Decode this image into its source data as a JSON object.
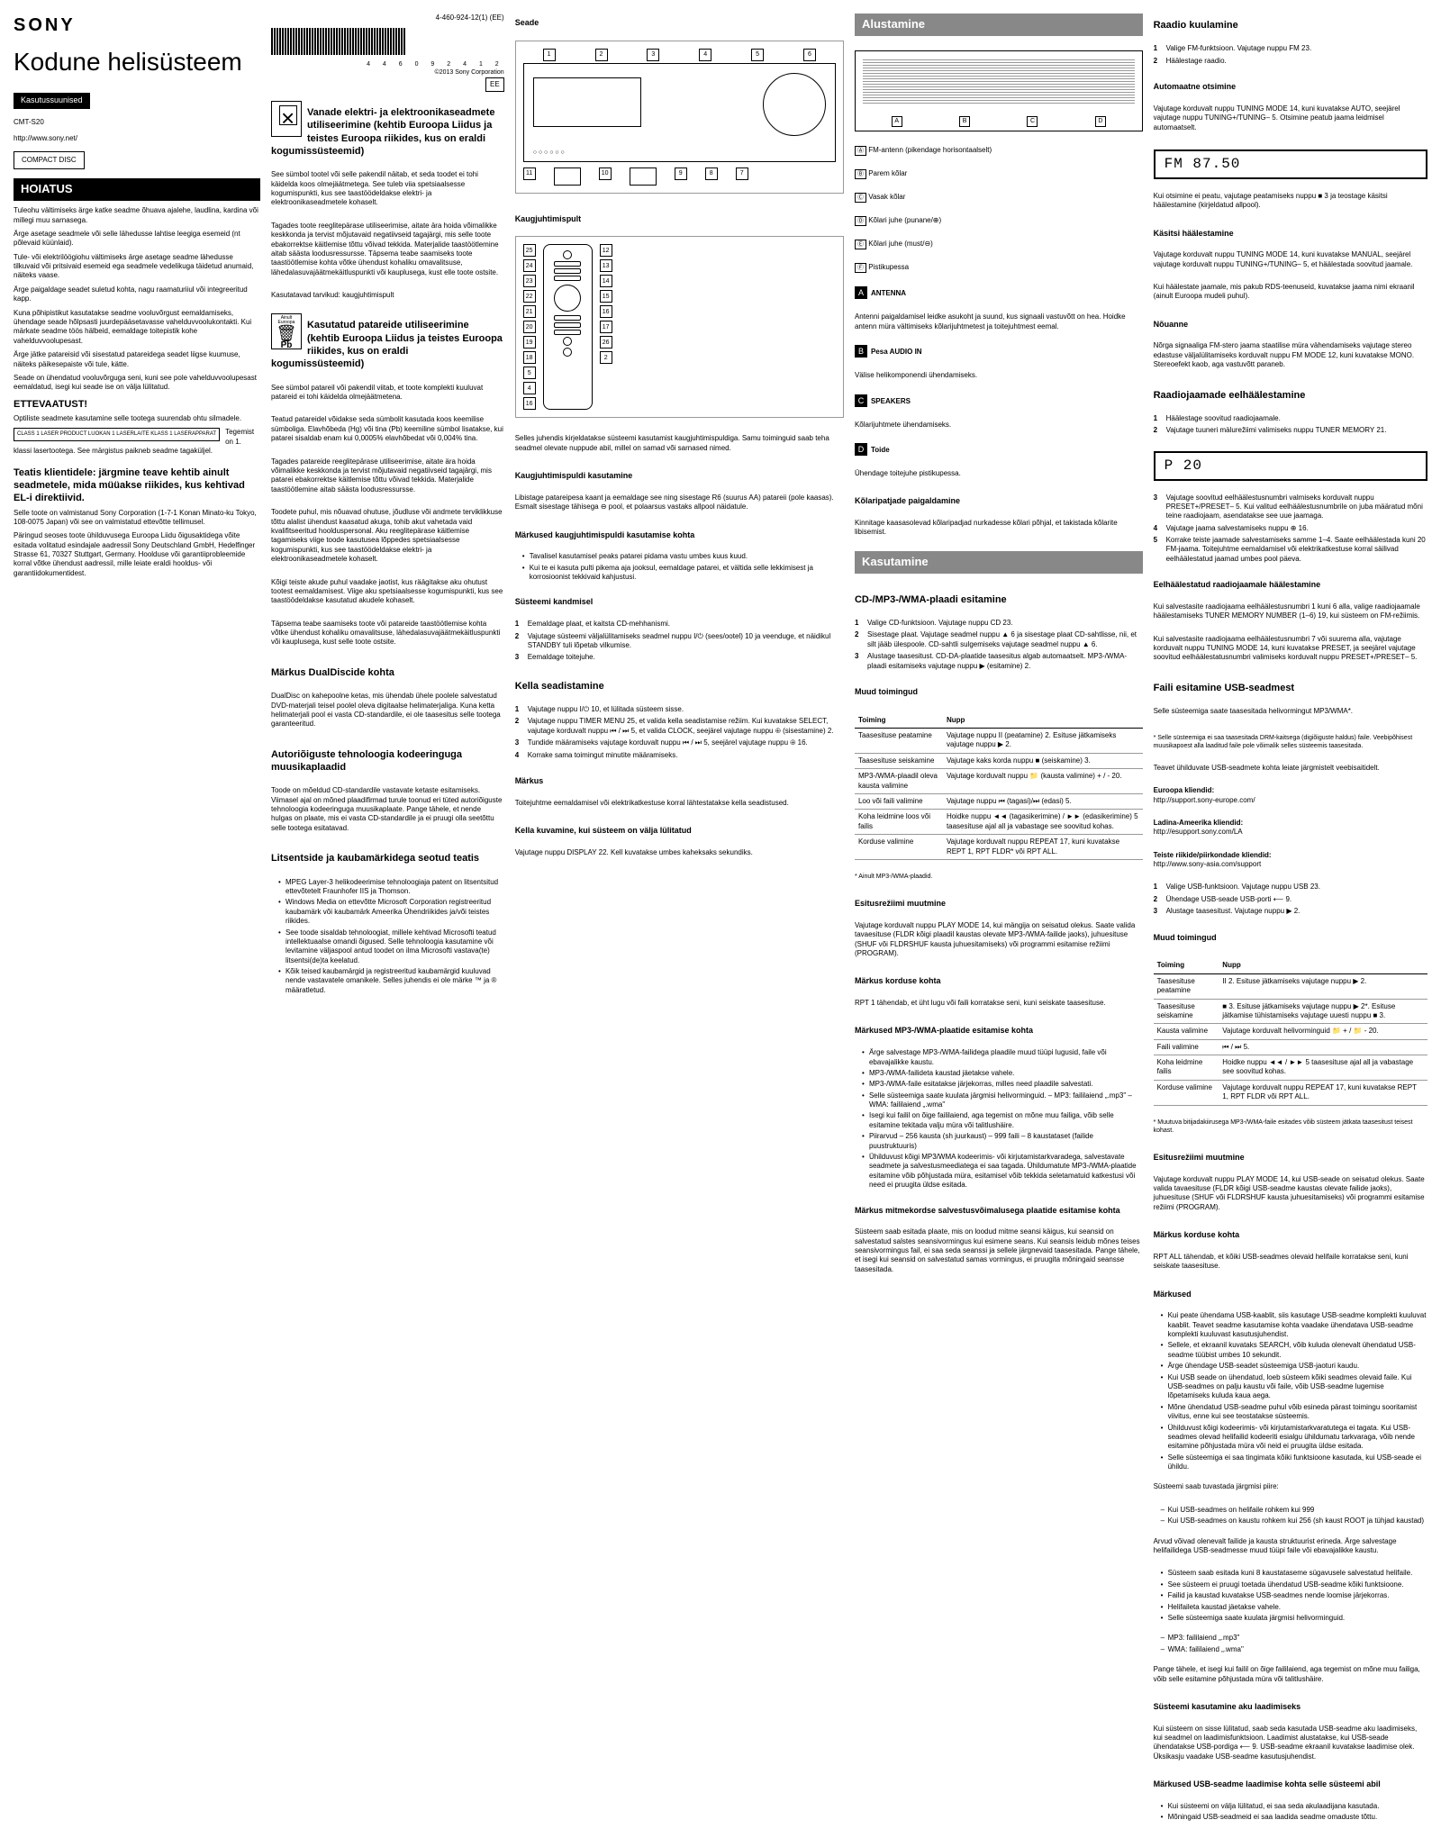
{
  "meta": {
    "brand": "SONY",
    "doc_number": "4-460-924-12(1) (EE)",
    "main_title": "Kodune helisüsteem",
    "badge": "Kasutussuunised",
    "barcode_num": "4 4 6 0 9 2 4 1 2",
    "copyright": "©2013 Sony Corporation",
    "model": "CMT-S20",
    "region_code": "EE",
    "url": "http://www.sony.net/",
    "cd_logo": "COMPACT DISC"
  },
  "warning": {
    "title": "HOIATUS",
    "p1": "Tuleohu vältimiseks ärge katke seadme õhuava ajalehe, laudlina, kardina või millegi muu sarnasega.",
    "p2": "Ärge asetage seadmele või selle lähedusse lahtise leegiga esemeid (nt põlevaid küünlaid).",
    "p3": "Tule- või elektrilöögiohu vältimiseks ärge asetage seadme lähedusse tilkuvaid või pritsivaid esemeid ega seadmele vedelikuga täidetud anumaid, näiteks vaase.",
    "p4": "Ärge paigaldage seadet suletud kohta, nagu raamaturiiul või integreeritud kapp.",
    "p5": "Kuna põhipistikut kasutatakse seadme vooluvõrgust eemaldamiseks, ühendage seade hõlpsasti juurdepääsetavasse vahelduvvoolukontakti. Kui märkate seadme töös hälbeid, eemaldage toitepistik kohe vahelduvvoolupesast.",
    "p6": "Ärge jätke patareisid või sisestatud patareidega seadet liigse kuumuse, näiteks päikesepaiste või tule, kätte.",
    "p7": "Seade on ühendatud vooluvõrguga seni, kuni see pole vahelduvvoolupesast eemaldatud, isegi kui seade ise on välja lülitatud.",
    "important_title": "ETTEVAATUST!",
    "important_p": "Optiliste seadmete kasutamine selle tootega suurendab ohtu silmadele.",
    "laser_box": "CLASS 1 LASER PRODUCT\nLUOKAN 1 LASERLAITE\nKLASS 1 LASERAPPARAT",
    "laser_p": "Tegemist on 1. klassi lasertootega. See märgistus paikneb seadme tagaküljel.",
    "notice_title": "Teatis klientidele: järgmine teave kehtib ainult seadmetele, mida müüakse riikides, kus kehtivad EL-i direktiivid.",
    "notice_p1": "Selle toote on valmistanud Sony Corporation (1-7-1 Konan Minato-ku Tokyo, 108-0075 Japan) või see on valmistatud ettevõtte tellimusel.",
    "notice_p2": "Päringud seoses toote ühilduvusega Euroopa Liidu õigusaktidega võite esitada volitatud esindajale aadressil Sony Deutschland GmbH, Hedelfinger Strasse 61, 70327 Stuttgart, Germany. Hoolduse või garantiiprobleemide korral võtke ühendust aadressil, mille leiate eraldi hooldus- või garantiidokumentidest."
  },
  "weee": {
    "title": "Vanade elektri- ja elektroonikaseadmete utiliseerimine (kehtib Euroopa Liidus ja teistes Euroopa riikides, kus on eraldi kogumissüsteemid)",
    "p1": "See sümbol tootel või selle pakendil näitab, et seda toodet ei tohi käidelda koos olmejäätmetega. See tuleb viia spetsiaalsesse kogumispunkti, kus see taastöödeldakse elektri- ja elektroonikaseadmetele kohaselt.",
    "p2": "Tagades toote reeglitepärase utiliseerimise, aitate ära hoida võimalikke keskkonda ja tervist mõjutavaid negatiivseid tagajärgi, mis selle toote ebakorrektse käitlemise tõttu võivad tekkida. Materjalide taastöötlemine aitab säästa loodusressursse. Täpsema teabe saamiseks toote taastöötlemise kohta võtke ühendust kohaliku omavalitsuse, lähedalasuvajäätmekäitluspunkti või kauplusega, kust elle toote ostsite.",
    "p3": "Kasutatavad tarvikud: kaugjuhtimispult"
  },
  "battery": {
    "region": "Ainult Euroopa",
    "symbol": "Pb",
    "title": "Kasutatud patareide utiliseerimine (kehtib Euroopa Liidus ja teistes Euroopa riikides, kus on eraldi kogumissüsteemid)",
    "p1": "See sümbol patareil või pakendil viitab, et toote komplekti kuuluvat patareid ei tohi käidelda olmejäätmetena.",
    "p2": "Teatud patareidel võidakse seda sümbolit kasutada koos keemilise sümboliga. Elavhõbeda (Hg) või tina (Pb) keemiline sümbol lisatakse, kui patarei sisaldab enam kui 0,0005% elavhõbedat või 0,004% tina.",
    "p3": "Tagades patareide reeglitepärase utiliseerimise, aitate ära hoida võimalikke keskkonda ja tervist mõjutavaid negatiivseid tagajärgi, mis patarei ebakorrektse käitlemise tõttu võivad tekkida. Materjalide taastöötlemine aitab säästa loodusressursse.",
    "p4": "Toodete puhul, mis nõuavad ohutuse, jõudluse või andmete terviklikkuse tõttu alalist ühendust kaasatud akuga, tohib akut vahetada vaid kvalifitseeritud hoolduspersonal. Aku reeglitepärase käitlemise tagamiseks viige toode kasutusea lõppedes spetsiaalsesse kogumispunkti, kus see taastöödeldakse elektri- ja elektroonikaseadmetele kohaselt.",
    "p5": "Kõigi teiste akude puhul vaadake jaotist, kus räägitakse aku ohutust tootest eemaldamisest. Viige aku spetsiaalsesse kogumispunkti, kus see taastöödeldakse kasutatud akudele kohaselt.",
    "p6": "Täpsema teabe saamiseks toote või patareide taastöötlemise kohta võtke ühendust kohaliku omavalitsuse, lähedalasuvajäätmekäitluspunkti või kauplusega, kust selle toote ostsite."
  },
  "dualdisc": {
    "title": "Märkus DualDiscide kohta",
    "p": "DualDisc on kahepoolne ketas, mis ühendab ühele poolele salvestatud DVD-materjali teisel poolel oleva digitaalse helimaterjaliga. Kuna ketta helimaterjali pool ei vasta CD-standardile, ei ole taasesitus selle tootega garanteeritud."
  },
  "copyright_tech": {
    "title": "Autoriõiguste tehnoloogia kodeeringuga muusikaplaadid",
    "p": "Toode on mõeldud CD-standardile vastavate ketaste esitamiseks. Viimasel ajal on mõned plaadifirmad turule toonud eri tüted autoriõiguste tehnoloogia kodeeringuga muusikaplaate. Pange tähele, et nende hulgas on plaate, mis ei vasta CD-standardile ja ei pruugi olla seetõttu selle tootega esitatavad."
  },
  "license": {
    "title": "Litsentside ja kaubamärkidega seotud teatis",
    "b1": "MPEG Layer-3 helikodeerimise tehnoloogiaja patent on litsentsitud ettevõtetelt Fraunhofer IIS ja Thomson.",
    "b2": "Windows Media on ettevõtte Microsoft Corporation registreeritud kaubamärk või kaubamärk Ameerika Ühendriikides ja/või teistes riikides.",
    "b3": "See toode sisaldab tehnoloogiat, millele kehtivad Microsofti teatud intellektuaalse omandi õigused. Selle tehnoloogia kasutamine või levitamine väljaspool antud toodet on ilma Microsofti vastava(te) litsentsi(de)ta keelatud.",
    "b4": "Kõik teised kaubamärgid ja registreeritud kaubamärgid kuuluvad nende vastavatele omanikele. Selles juhendis ei ole märke ™ ja ® määratletud."
  },
  "diagram": {
    "title": "Seade",
    "front_callouts": [
      "1",
      "2",
      "3",
      "4",
      "5",
      "6"
    ],
    "side_callouts": [
      "7",
      "8",
      "9",
      "10",
      "11"
    ],
    "remote_title": "Kaugjuhtimispult",
    "remote_left": [
      "25",
      "24",
      "23",
      "22",
      "21",
      "20",
      "19",
      "18"
    ],
    "remote_right": [
      "12",
      "13",
      "14",
      "15",
      "16",
      "17"
    ],
    "remote_bottom_left": [
      "5",
      "4",
      "16"
    ],
    "remote_bottom_right": [
      "26",
      "2"
    ],
    "remote_note": "Selles juhendis kirjeldatakse süsteemi kasutamist kaugjuhtimispuldiga. Samu toiminguid saab teha seadmel olevate nuppude abil, millel on samad või sarnased nimed.",
    "remote_batt_title": "Kaugjuhtimispuldi kasutamine",
    "remote_batt_p": "Libistage patareipesa kaant ja eemaldage see ning sisestage R6 (suurus AA) patareii (pole kaasas). Esmalt sisestage tähisega ⊖ pool, et polaarsus vastaks allpool näidatule.",
    "remote_notes_title": "Märkused kaugjuhtimispuldi kasutamise kohta",
    "remote_note1": "Tavalisel kasutamisel peaks patarei pidama vastu umbes kuus kuud.",
    "remote_note2": "Kui te ei kasuta pulti pikema aja jooksul, eemaldage patarei, et vältida selle lekkimisest ja korrosioonist tekkivaid kahjustusi."
  },
  "rear": {
    "labels": [
      "A",
      "B",
      "C",
      "D"
    ],
    "legend_a": "FM-antenn (pikendage horisontaalselt)",
    "legend_b": "Parem kõlar",
    "legend_c": "Vasak kõlar",
    "legend_d": "Kõlari juhe (punane/⊕)",
    "legend_e": "Kõlari juhe (must/⊖)",
    "legend_f": "Pistikupessa"
  },
  "startup": {
    "title": "Alustamine",
    "antenna_lbl": "A",
    "antenna_title": "ANTENNA",
    "antenna_p": "Antenni paigaldamisel leidke asukoht ja suund, kus signaali vastuvõtt on hea. Hoidke antenn müra vältimiseks kõlarijuhtmetest ja toitejuhtmest eemal.",
    "audio_lbl": "B",
    "audio_title": "Pesa AUDIO IN",
    "audio_p": "Välise helikomponendi ühendamiseks.",
    "speakers_lbl": "C",
    "speakers_title": "SPEAKERS",
    "speakers_p": "Kõlarijuhtmete ühendamiseks.",
    "power_lbl": "D",
    "power_title": "Toide",
    "power_p": "Ühendage toitejuhe pistikupessa.",
    "speaker_pads_title": "Kõlaripatjade paigaldamine",
    "speaker_pads_p": "Kinnitage kaasasolevad kõlaripadjad nurkadesse kõlari põhjal, et takistada kõlarite libisemist."
  },
  "clock": {
    "title": "Kella seadistamine",
    "s1": "Vajutage nuppu I/⏻ 10, et lülitada süsteem sisse.",
    "s2": "Vajutage nuppu TIMER MENU 25, et valida kella seadistamise režiim. Kui kuvatakse SELECT, vajutage korduvalt nuppu ⏮ / ⏭ 5, et valida CLOCK, seejärel vajutage nuppu ⊕ (sisestamine) 2.",
    "s3": "Tundide määramiseks vajutage korduvalt nuppu ⏮ / ⏭ 5, seejärel vajutage nuppu ⊕ 16.",
    "s4": "Korrake sama toimingut minutite määramiseks.",
    "note_title": "Märkus",
    "note_p": "Toitejuhtme eemaldamisel või elektrikatkestuse korral lähtestatakse kella seadistused.",
    "off_title": "Kella kuvamine, kui süsteem on välja lülitatud",
    "off_p": "Vajutage nuppu DISPLAY 22. Kell kuvatakse umbes kaheksaks sekundiks."
  },
  "system": {
    "title": "Süsteemi kandmisel",
    "s1": "Eemaldage plaat, et kaitsta CD-mehhanismi.",
    "s2": "Vajutage süsteemi väljalülitamiseks seadmel nuppu I/⏻ (sees/ootel) 10 ja veenduge, et näidikul STANDBY tuli lõpetab vilkumise.",
    "s3": "Eemaldage toitejuhe."
  },
  "usage": {
    "title": "Kasutamine"
  },
  "cd": {
    "title": "CD-/MP3-/WMA-plaadi esitamine",
    "s1": "Valige CD-funktsioon. Vajutage nuppu CD 23.",
    "s2": "Sisestage plaat. Vajutage seadmel nuppu ▲ 6 ja sisestage plaat CD-sahtlisse, nii, et silt jääb ülespoole. CD-sahtli sulgemiseks vajutage seadmel nuppu ▲ 6.",
    "s3": "Alustage taasesitust. CD-DA-plaatide taasesitus algab automaatselt. MP3-/WMA-plaadi esitamiseks vajutage nuppu ▶ (esitamine) 2.",
    "ops_title": "Muud toimingud",
    "col_to": "Toiming",
    "col_do": "Nupp",
    "r1_to": "Taasesituse peatamine",
    "r1_do": "Vajutage nuppu II (peatamine) 2. Esituse jätkamiseks vajutage nuppu ▶ 2.",
    "r2_to": "Taasesituse seiskamine",
    "r2_do": "Vajutage kaks korda nuppu ■ (seiskamine) 3.",
    "r3_to": "MP3-/WMA-plaadil oleva kausta valimine",
    "r3_do": "Vajutage korduvalt nuppu 📁 (kausta valimine) + / - 20.",
    "r4_to": "Loo või faili valimine",
    "r4_do": "Vajutage nuppu ⏮ (tagasi)/⏭ (edasi) 5.",
    "r5_to": "Koha leidmine loos või failis",
    "r5_do": "Hoidke nuppu ◄◄ (tagasikerimine) / ►► (edasikerimine) 5 taasesituse ajal all ja vabastage see soovitud kohas.",
    "r6_to": "Korduse valimine",
    "r6_do": "Vajutage korduvalt nuppu REPEAT 17, kuni kuvatakse REPT 1, RPT FLDR* või RPT ALL.",
    "footnote": "* Ainult MP3-/WMA-plaadid.",
    "mode_title": "Esitusrežiimi muutmine",
    "mode_p": "Vajutage korduvalt nuppu PLAY MODE 14, kui mängija on seisatud olekus. Saate valida tavaesituse (FLDR kõigi plaadil kaustas olevate MP3-/WMA-failide jaoks), juhuesituse (SHUF või FLDRSHUF kausta juhuesitamiseks) või programmi esitamise režiimi (PROGRAM).",
    "rpt_title": "Märkus korduse kohta",
    "rpt_p": "RPT 1 tähendab, et üht lugu või faili korratakse seni, kuni seiskate taasesituse."
  },
  "mp3_notes": {
    "title": "Märkused MP3-/WMA-plaatide esitamise kohta",
    "b1": "Ärge salvestage MP3-/WMA-failidega plaadile muud tüüpi lugusid, faile või ebavajalikke kaustu.",
    "b2": "MP3-/WMA-failideta kaustad jäetakse vahele.",
    "b3": "MP3-/WMA-faile esitatakse järjekorras, milles need plaadile salvestati.",
    "b4": "Selle süsteemiga saate kuulata järgmisi helivorminguid. – MP3: faililaiend „.mp3\" – WMA: faililaiend „.wma\"",
    "b5": "Isegi kui failil on õige faililaiend, aga tegemist on mõne muu failiga, võib selle esitamine tekitada valju müra või talitlushäire.",
    "b6": "Piirarvud – 256 kausta (sh juurkaust) – 999 faili – 8 kaustataset (failide puustruktuuris)",
    "b7": "Ühilduvust kõigi MP3/WMA kodeerimis- või kirjutamistarkvaradega, salvestavate seadmete ja salvestusmeediatega ei saa tagada. Ühildumatute MP3-/WMA-plaatide esitamine võib põhjustada müra, esitamisel võib tekkida seletamatuid katkestusi või need ei pruugita üldse esitada.",
    "multi_title": "Märkus mitmekordse salvestusvõimalusega plaatide esitamise kohta",
    "multi_p": "Süsteem saab esitada plaate, mis on loodud mitme seansi käigus, kui seansid on salvestatud salstes seansivormingus kui esimene seans. Kui seansis leidub mõnes teises seansivormingus fail, ei saa seda seanssi ja sellele järgnevaid taasesitada. Pange tähele, et isegi kui seansid on salvestatud samas vormingus, ei pruugita mõningaid seansse taasesitada."
  },
  "radio": {
    "title": "Raadio kuulamine",
    "s1": "Valige FM-funktsioon. Vajutage nuppu FM 23.",
    "s2": "Häälestage raadio.",
    "auto_title": "Automaatne otsimine",
    "auto_p": "Vajutage korduvalt nuppu TUNING MODE 14, kuni kuvatakse AUTO, seejärel vajutage nuppu TUNING+/TUNING– 5. Otsimine peatub jaama leidmisel automaatselt.",
    "display_text": "FM 87.50",
    "auto_p2": "Kui otsimine ei peatu, vajutage peatamiseks nuppu ■ 3 ja teostage käsitsi häälestamine (kirjeldatud allpool).",
    "manual_title": "Käsitsi häälestamine",
    "manual_p": "Vajutage korduvalt nuppu TUNING MODE 14, kuni kuvatakse MANUAL, seejärel vajutage korduvalt nuppu TUNING+/TUNING– 5, et häälestada soovitud jaamale.",
    "manual_p2": "Kui häälestate jaamale, mis pakub RDS-teenuseid, kuvatakse jaama nimi ekraanil (ainult Euroopa mudeli puhul).",
    "tip_title": "Nõuanne",
    "tip_p": "Nõrga signaaliga FM-stero jaama staatilise müra vähendamiseks vajutage stereo edastuse väljalülitamiseks korduvalt nuppu FM MODE 12, kuni kuvatakse MONO. Stereoefekt kaob, aga vastuvõtt paraneb."
  },
  "preset": {
    "title": "Raadiojaamade eelhäälestamine",
    "s1": "Häälestage soovitud raadiojaamale.",
    "s2": "Vajutage tuuneri mälurežiimi valimiseks nuppu TUNER MEMORY 21.",
    "display_text": "P   20",
    "s3": "Vajutage soovitud eelhäälestusnumbri valmiseks korduvalt nuppu PRESET+/PRESET– 5. Kui valitud eelhäälestusnumbrile on juba määratud mõni teine raadiojaam, asendatakse see uue jaamaga.",
    "s4": "Vajutage jaama salvestamiseks nuppu ⊕ 16.",
    "s5": "Korrake teiste jaamade salvestamiseks samme 1–4. Saate eelhäälestada kuni 20 FM-jaama. Toitejuhtme eemaldamisel või elektrikatkestuse korral säilivad eelhäälestatud jaamad umbes pool päeva.",
    "listen_title": "Eelhäälestatud raadiojaamale häälestamine",
    "listen_p": "Kui salvestasite raadiojaama eelhäälestusnumbri 1 kuni 6 alla, valige raadiojaamale häälestamiseks TUNER MEMORY NUMBER (1–6) 19, kui süsteem on FM-režiimis.",
    "listen_p2": "Kui salvestasite raadiojaama eelhäälestusnumbri 7 või suurema alla, vajutage korduvalt nuppu TUNING MODE 14, kuni kuvatakse PRESET, ja seejärel vajutage soovitud eelhäälestatusnumbri valimiseks korduvalt nuppu PRESET+/PRESET– 5."
  },
  "usb": {
    "title": "Faili esitamine USB-seadmest",
    "p1": "Selle süsteemiga saate taasesitada helivormingut MP3/WMA*.",
    "note": "* Selle süsteemiga ei saa taasesitada DRM-kaitsega (digiõiguste haldus) faile. Veebipõhisest muusikapoest alla laaditud faile pole võimalik selles süsteemis taasesitada.",
    "p2": "Teavet ühilduvate USB-seadmete kohta leiate järgmistelt veebisaitidelt.",
    "eu_label": "Euroopa kliendid:",
    "eu_url": "http://support.sony-europe.com/",
    "latam_label": "Ladina-Ameerika kliendid:",
    "latam_url": "http://esupport.sony.com/LA",
    "other_label": "Teiste riikide/piirkondade kliendid:",
    "other_url": "http://www.sony-asia.com/support",
    "s1": "Valige USB-funktsioon. Vajutage nuppu USB 23.",
    "s2": "Ühendage USB-seade USB-porti ⟵ 9.",
    "s3": "Alustage taasesitust. Vajutage nuppu ▶ 2.",
    "ops_title": "Muud toimingud",
    "col_to": "Toiming",
    "col_do": "Nupp",
    "r1_to": "Taasesituse peatamine",
    "r1_do": "II 2. Esituse jätkamiseks vajutage nuppu ▶ 2.",
    "r2_to": "Taasesituse seiskamine",
    "r2_do": "■ 3. Esituse jätkamiseks vajutage nuppu ▶ 2*. Esituse jätkamise tühistamiseks vajutage uuesti nuppu ■ 3.",
    "r3_to": "Kausta valimine",
    "r3_do": "Vajutage korduvalt helivorminguid 📁 + / 📁 - 20.",
    "r4_to": "Faili valimine",
    "r4_do": "⏮ / ⏭ 5.",
    "r5_to": "Koha leidmine failis",
    "r5_do": "Hoidke nuppu ◄◄ / ►► 5 taasesituse ajal all ja vabastage see soovitud kohas.",
    "r6_to": "Korduse valimine",
    "r6_do": "Vajutage korduvalt nuppu REPEAT 17, kuni kuvatakse REPT 1, RPT FLDR või RPT ALL.",
    "footnote": "* Muutuva bitijadakiirusega MP3-/WMA-faile esitades võib süsteem jätkata taasesitust teisest kohast.",
    "mode_title": "Esitusrežiimi muutmine",
    "mode_p": "Vajutage korduvalt nuppu PLAY MODE 14, kui USB-seade on seisatud olekus. Saate valida tavaesituse (FLDR kõigi USB-seadme kaustas olevate failide jaoks), juhuesituse (SHUF või FLDRSHUF kausta juhuesitamiseks) või programmi esitamise režiimi (PROGRAM).",
    "rpt_title": "Märkus korduse kohta",
    "rpt_p": "RPT ALL tähendab, et kõiki USB-seadmes olevaid helifaile korratakse seni, kuni seiskate taasesituse."
  },
  "usb_notes": {
    "title": "Märkused",
    "b1": "Kui peate ühendama USB-kaablit, siis kasutage USB-seadme komplekti kuuluvat kaablit. Teavet seadme kasutamise kohta vaadake ühendatava USB-seadme komplekti kuuluvast kasutusjuhendist.",
    "b2": "Sellele, et ekraanil kuvataks SEARCH, võib kuluda olenevalt ühendatud USB-seadme tüübist umbes 10 sekundit.",
    "b3": "Ärge ühendage USB-seadet süsteemiga USB-jaoturi kaudu.",
    "b4": "Kui USB seade on ühendatud, loeb süsteem kõiki seadmes olevaid faile. Kui USB-seadmes on palju kaustu või faile, võib USB-seadme lugemise lõpetamiseks kuluda kaua aega.",
    "b5": "Mõne ühendatud USB-seadme puhul võib esineda pärast toimingu sooritamist viivitus, enne kui see teostatakse süsteemis.",
    "b6": "Ühilduvust kõigi kodeerimis- või kirjutamistarkvaratutega ei tagata. Kui USB-seadmes olevad helifailid kodeeriti esialgu ühildumatu tarkvaraga, võib nende esitamine põhjustada müra või neid ei pruugita üldse esitada.",
    "b7": "Selle süsteemiga ei saa tingimata kõiki funktsioone kasutada, kui USB-seade ei ühildu.",
    "limits_intro": "Süsteemi saab tuvastada järgmisi piire:",
    "l1": "Kui USB-seadmes on helifaile rohkem kui 999",
    "l2": "Kui USB-seadmes on kaustu rohkem kui 256 (sh kaust ROOT ja tühjad kaustad)",
    "limits_p": "Arvud võivad olenevalt failide ja kausta struktuurist erineda. Ärge salvestage helifailidega USB-seadmesse muud tüüpi faile või ebavajalikke kaustu.",
    "b8": "Süsteem saab esitada kuni 8 kaustataseme sügavusele salvestatud helifaile.",
    "b9": "See süsteem ei pruugi toetada ühendatud USB-seadme kõiki funktsioone.",
    "b10": "Failid ja kaustad kuvatakse USB-seadmes nende loomise järjekorras.",
    "b11": "Helifaileta kaustad jäetakse vahele.",
    "b12": "Selle süsteemiga saate kuulata järgmisi helivorminguid.",
    "f1": "MP3: faililaiend „.mp3\"",
    "f2": "WMA: faililaiend „.wma\"",
    "b13": "Pange tähele, et isegi kui failil on õige faililaiend, aga tegemist on mõne muu failiga, võib selle esitamine põhjustada müra või talitlushäire.",
    "load_title": "Süsteemi kasutamine aku laadimiseks",
    "load_p": "Kui süsteem on sisse lülitatud, saab seda kasutada USB-seadme aku laadimiseks, kui seadmel on laadimisfunktsioon. Laadimist alustatakse, kui USB-seade ühendatakse USB-pordiga ⟵ 9. USB-seadme ekraanil kuvatakse laadimise olek. Üksikasju vaadake USB-seadme kasutusjuhendist.",
    "stop_title": "Märkused USB-seadme laadimise kohta selle süsteemi abil",
    "stop_b1": "Kui süsteemi on välja lülitatud, ei saa seda akulaadijana kasutada.",
    "stop_b2": "Mõningaid USB-seadmeid ei saa laadida seadme omaduste tõttu."
  }
}
